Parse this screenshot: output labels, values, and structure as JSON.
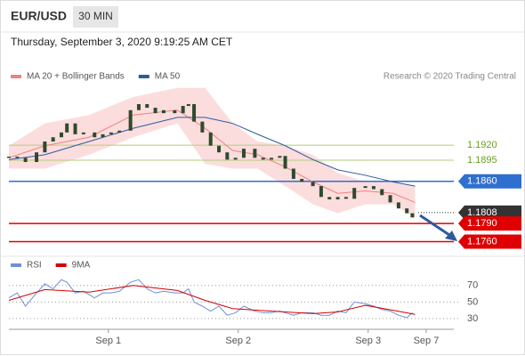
{
  "header": {
    "symbol": "EUR/USD",
    "timeframe": "30 MIN",
    "timestamp": "Thursday, September 3, 2020 9:19:25 AM CET"
  },
  "chart_data": [
    {
      "type": "candlestick",
      "annotation": "Research © 2020 Trading Central",
      "xlim": [
        0,
        161
      ],
      "ylim": [
        1.174,
        1.205
      ],
      "candle_color": "#2e4a2e",
      "x": [
        0,
        3,
        6,
        10,
        13,
        16,
        19,
        21,
        24,
        27,
        31,
        34,
        37,
        40,
        44,
        47,
        50,
        53,
        56,
        60,
        63,
        65,
        67,
        70,
        73,
        76,
        79,
        82,
        85,
        89,
        92,
        95,
        98,
        100,
        103,
        106,
        110,
        113,
        116,
        119,
        122,
        125,
        129,
        132,
        135,
        138,
        141,
        144,
        146
      ],
      "close": [
        1.1901,
        1.1899,
        1.1892,
        1.1908,
        1.1926,
        1.1933,
        1.1941,
        1.1956,
        1.1938,
        1.1941,
        1.1933,
        1.1938,
        1.1941,
        1.1944,
        1.1978,
        1.1988,
        1.1982,
        1.1973,
        1.1978,
        1.1973,
        1.1985,
        1.1988,
        1.1959,
        1.1941,
        1.1919,
        1.1908,
        1.1896,
        1.1899,
        1.1914,
        1.1899,
        1.1896,
        1.1899,
        1.1902,
        1.1881,
        1.1864,
        1.1859,
        1.1852,
        1.1834,
        1.183,
        1.1834,
        1.1831,
        1.1849,
        1.1852,
        1.1847,
        1.1837,
        1.1825,
        1.1815,
        1.1807,
        1.18
      ],
      "overlays": [
        {
          "name": "MA 20 + Bollinger Bands",
          "color": "#f08080",
          "band_color": "#fbd5d5",
          "x": [
            0,
            13,
            29,
            45,
            61,
            71,
            81,
            90,
            100,
            110,
            119,
            129,
            139,
            147
          ],
          "values": [
            1.1899,
            1.1919,
            1.1933,
            1.197,
            1.1978,
            1.1948,
            1.1911,
            1.1904,
            1.1884,
            1.1859,
            1.184,
            1.1844,
            1.184,
            1.1825
          ],
          "upper": [
            1.1919,
            1.1956,
            1.197,
            1.2,
            1.2015,
            1.2015,
            1.1956,
            1.1926,
            1.1919,
            1.1904,
            1.1874,
            1.1859,
            1.1859,
            1.1852
          ],
          "lower": [
            1.1881,
            1.1881,
            1.1904,
            1.1933,
            1.1956,
            1.1889,
            1.1881,
            1.1881,
            1.1852,
            1.1822,
            1.1807,
            1.1822,
            1.1822,
            1.18
          ]
        },
        {
          "name": "MA 50",
          "color": "#2e5a9c",
          "x": [
            0,
            13,
            29,
            45,
            61,
            71,
            81,
            90,
            100,
            110,
            119,
            129,
            139,
            147
          ],
          "values": [
            1.1896,
            1.1904,
            1.1926,
            1.1948,
            1.1966,
            1.1966,
            1.1956,
            1.1938,
            1.1919,
            1.1896,
            1.1879,
            1.187,
            1.1859,
            1.1852
          ]
        }
      ],
      "levels": [
        {
          "value": 1.192,
          "label": "1.1920",
          "color": "#b5cc7a",
          "text_color": "#6a9e1f",
          "label_style": "text",
          "line_style": "solid"
        },
        {
          "value": 1.1895,
          "label": "1.1895",
          "color": "#b5cc7a",
          "text_color": "#6a9e1f",
          "label_style": "text",
          "line_style": "solid"
        },
        {
          "value": 1.186,
          "label": "1.1860",
          "color": "#2f6fd0",
          "text_color": "#ffffff",
          "label_style": "box",
          "line_style": "solid"
        },
        {
          "value": 1.1808,
          "label": "1.1808",
          "color": "#333333",
          "text_color": "#ffffff",
          "label_style": "box",
          "line_style": "dotted"
        },
        {
          "value": 1.179,
          "label": "1.1790",
          "color": "#e00000",
          "text_color": "#ffffff",
          "label_style": "box",
          "line_style": "solid"
        },
        {
          "value": 1.176,
          "label": "1.1760",
          "color": "#e00000",
          "text_color": "#ffffff",
          "label_style": "box",
          "line_style": "solid"
        }
      ]
    },
    {
      "type": "line",
      "xlim": [
        0,
        161
      ],
      "ylim": [
        17,
        87
      ],
      "yticks": [
        30,
        50,
        70
      ],
      "xticks": [
        {
          "value": 36,
          "label": "Sep 1"
        },
        {
          "value": 83,
          "label": "Sep 2"
        },
        {
          "value": 130,
          "label": "Sep 3"
        },
        {
          "value": 151,
          "label": "Sep 7"
        }
      ],
      "series": [
        {
          "name": "RSI",
          "color": "#6f8fd6",
          "x": [
            0,
            3,
            6,
            10,
            13,
            16,
            19,
            21,
            24,
            27,
            31,
            34,
            37,
            40,
            44,
            47,
            50,
            53,
            56,
            60,
            63,
            65,
            67,
            70,
            73,
            76,
            79,
            82,
            85,
            89,
            92,
            95,
            98,
            100,
            103,
            106,
            110,
            113,
            116,
            119,
            122,
            125,
            129,
            132,
            135,
            138,
            141,
            144,
            146
          ],
          "values": [
            55,
            61,
            45,
            61,
            72,
            66,
            77,
            74,
            61,
            63,
            55,
            61,
            61,
            63,
            74,
            77,
            66,
            61,
            63,
            61,
            61,
            66,
            50,
            45,
            39,
            45,
            34,
            37,
            45,
            39,
            37,
            37,
            39,
            37,
            34,
            37,
            37,
            34,
            34,
            39,
            37,
            50,
            48,
            45,
            41,
            39,
            34,
            31,
            37
          ]
        },
        {
          "name": "9MA",
          "color": "#d40000",
          "x": [
            0,
            13,
            29,
            45,
            61,
            71,
            81,
            90,
            100,
            110,
            119,
            129,
            139,
            147
          ],
          "values": [
            52,
            65,
            62,
            70,
            64,
            52,
            42,
            40,
            38,
            36,
            38,
            46,
            40,
            35
          ]
        }
      ]
    }
  ]
}
